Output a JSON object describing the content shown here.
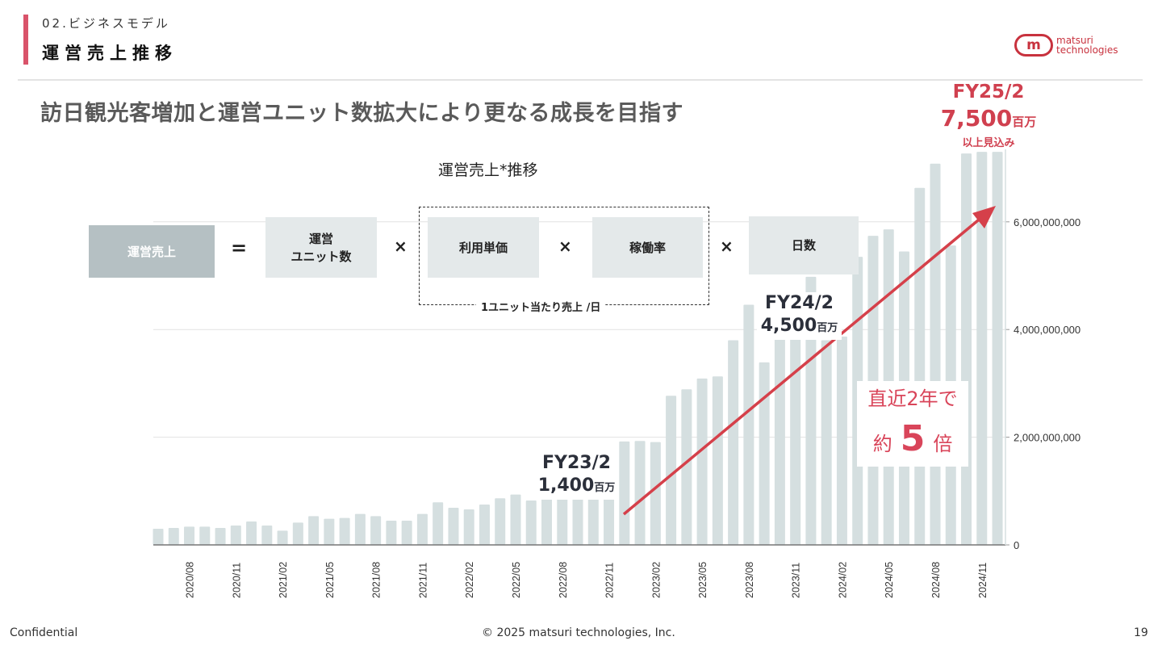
{
  "header": {
    "section": "02.ビジネスモデル",
    "title": "運営売上推移",
    "logo_text": [
      "matsuri",
      "technologies"
    ],
    "headline": "訪日観光客増加と運営ユニット数拡大により更なる成長を目指す"
  },
  "formula": {
    "result": "運営売上",
    "equals": "=",
    "times": "×",
    "units": [
      "運営",
      "ユニット数"
    ],
    "price": "利用単価",
    "occupancy": "稼働率",
    "days": "日数",
    "per_unit_label": "1ユニット当たり売上 /日"
  },
  "annotations": {
    "fy23": {
      "label": "FY23/2",
      "amount": "1,400",
      "unit": "百万"
    },
    "fy24": {
      "label": "FY24/2",
      "amount": "4,500",
      "unit": "百万"
    },
    "fy25": {
      "label": "FY25/2",
      "amount": "7,500",
      "unit": "百万",
      "note": "以上見込み"
    },
    "growth": {
      "line1": "直近2年で",
      "pre": "約",
      "big": "5",
      "post": "倍"
    }
  },
  "colors": {
    "accent": "#d9536a",
    "bar": "#d5dfe0",
    "arrow": "#d5404a",
    "red_text": "#d0404f"
  },
  "chart_data": {
    "type": "bar",
    "title": "運営売上*推移",
    "xlabel": "",
    "ylabel": "",
    "ylim": [
      0,
      7500000000
    ],
    "yticks": [
      0,
      2000000000,
      4000000000,
      6000000000
    ],
    "ytick_labels": [
      "0",
      "2,000,000,000",
      "4,000,000,000",
      "6,000,000,000"
    ],
    "grid": true,
    "categories": [
      "2020/06",
      "2020/07",
      "2020/08",
      "2020/09",
      "2020/10",
      "2020/11",
      "2020/12",
      "2021/01",
      "2021/02",
      "2021/03",
      "2021/04",
      "2021/05",
      "2021/06",
      "2021/07",
      "2021/08",
      "2021/09",
      "2021/10",
      "2021/11",
      "2021/12",
      "2022/01",
      "2022/02",
      "2022/03",
      "2022/04",
      "2022/05",
      "2022/06",
      "2022/07",
      "2022/08",
      "2022/09",
      "2022/10",
      "2022/11",
      "2022/12",
      "2023/01",
      "2023/02",
      "2023/03",
      "2023/04",
      "2023/05",
      "2023/06",
      "2023/07",
      "2023/08",
      "2023/09",
      "2023/10",
      "2023/11",
      "2023/12",
      "2024/01",
      "2024/02",
      "2024/03",
      "2024/04",
      "2024/05",
      "2024/06",
      "2024/07",
      "2024/08",
      "2024/09",
      "2024/10",
      "2024/11",
      "2024/12"
    ],
    "values": [
      300000000,
      315000000,
      340000000,
      340000000,
      315000000,
      360000000,
      435000000,
      360000000,
      265000000,
      415000000,
      535000000,
      485000000,
      500000000,
      575000000,
      535000000,
      450000000,
      450000000,
      575000000,
      790000000,
      690000000,
      660000000,
      750000000,
      865000000,
      935000000,
      825000000,
      1000000000,
      1020000000,
      1000000000,
      1050000000,
      1285000000,
      1920000000,
      1930000000,
      1910000000,
      2770000000,
      2890000000,
      3090000000,
      3130000000,
      3800000000,
      4460000000,
      3390000000,
      3820000000,
      4120000000,
      4980000000,
      3800000000,
      3870000000,
      5350000000,
      5740000000,
      5860000000,
      5450000000,
      6630000000,
      7080000000,
      5560000000,
      7270000000,
      7300000000,
      7300000000
    ],
    "xtick_labels": [
      "2020/08",
      "2020/11",
      "2021/02",
      "2021/05",
      "2021/08",
      "2021/11",
      "2022/02",
      "2022/05",
      "2022/08",
      "2022/11",
      "2023/02",
      "2023/05",
      "2023/08",
      "2023/11",
      "2024/02",
      "2024/05",
      "2024/08",
      "2024/11"
    ]
  },
  "footer": {
    "left": "Confidential",
    "center": "© 2025 matsuri technologies, Inc.",
    "page": "19"
  }
}
